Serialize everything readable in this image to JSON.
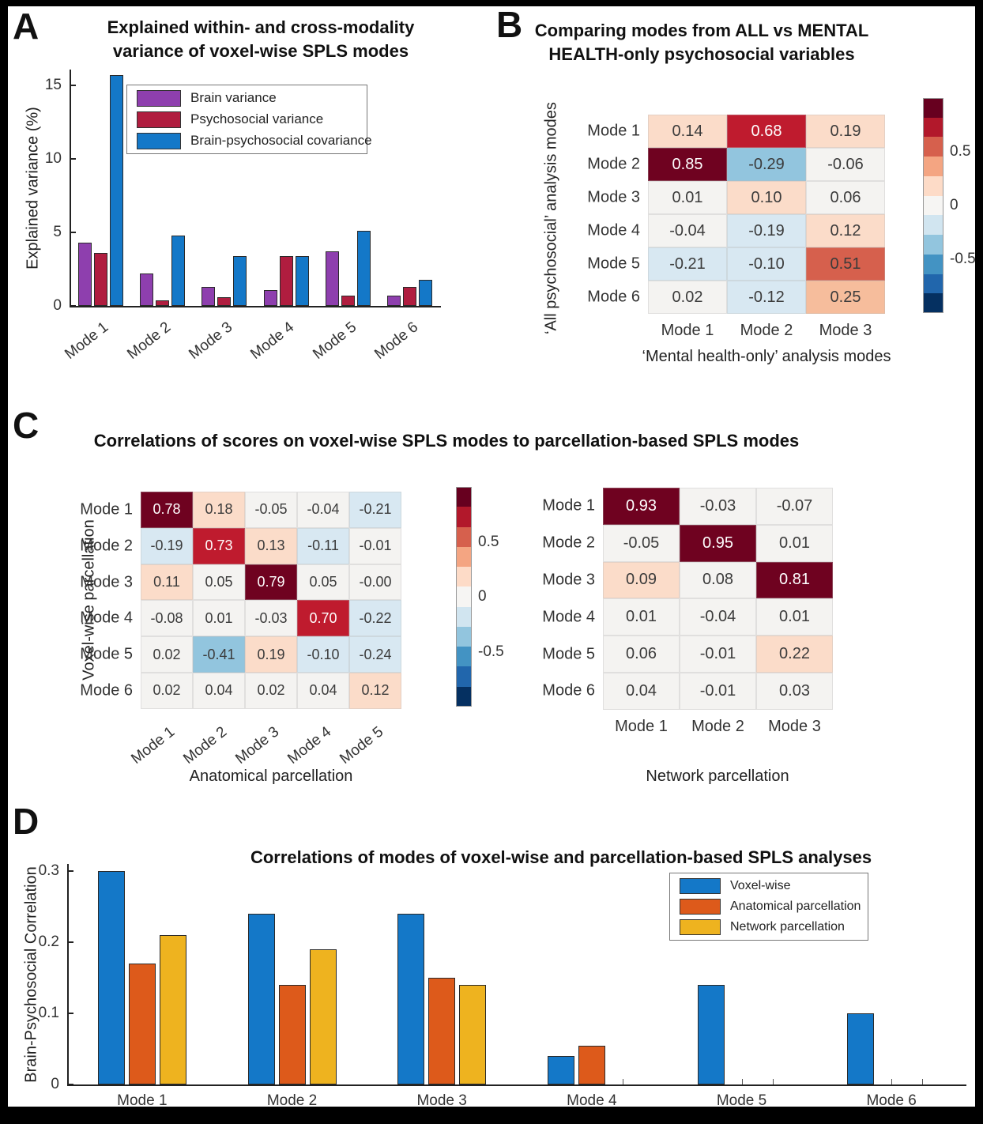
{
  "figure": {
    "colorbar_ticks": [
      "0.5",
      "0",
      "-0.5"
    ],
    "colorbar_segments": [
      "#67001f",
      "#b2182b",
      "#d6604d",
      "#f4a582",
      "#fddbc7",
      "#f6f5f3",
      "#d1e5f0",
      "#92c5de",
      "#4393c3",
      "#2166ac",
      "#053061"
    ],
    "heatmap_colormap": {
      "thresholds": [
        0.75,
        0.62,
        0.45,
        0.23,
        0.085,
        -0.085,
        -0.26,
        -0.5
      ],
      "colors": [
        "#6f0220",
        "#bf1b2e",
        "#d6604d",
        "#f6bd9c",
        "#fbdcc9",
        "#f4f3f1",
        "#d8e8f2",
        "#92c5de",
        "#4393c3"
      ],
      "white_text_min": 0.62
    }
  },
  "chart_data": [
    {
      "id": "A",
      "panel_label": "A",
      "type": "bar",
      "title_lines": [
        "Explained within- and cross-modality",
        "variance of voxel-wise SPLS modes"
      ],
      "ylabel": "Explained variance (%)",
      "categories": [
        "Mode 1",
        "Mode 2",
        "Mode 3",
        "Mode 4",
        "Mode 5",
        "Mode 6"
      ],
      "yticks": [
        0,
        5,
        10,
        15
      ],
      "ylim": [
        0,
        16.1
      ],
      "grid": false,
      "legend_position": "upper center",
      "series": [
        {
          "name": "Brain variance",
          "color": "#8e3fae",
          "values": [
            4.3,
            2.2,
            1.3,
            1.1,
            3.7,
            0.7
          ]
        },
        {
          "name": "Psychosocial variance",
          "color": "#b01d3f",
          "values": [
            3.6,
            0.4,
            0.6,
            3.4,
            0.7,
            1.3
          ]
        },
        {
          "name": "Brain-psychosocial covariance",
          "color": "#1478c8",
          "values": [
            15.7,
            4.8,
            3.4,
            3.4,
            5.1,
            1.8
          ]
        }
      ]
    },
    {
      "id": "B",
      "panel_label": "B",
      "type": "heatmap",
      "title_lines": [
        "Comparing modes from ALL vs MENTAL",
        "HEALTH-only psychosocial variables"
      ],
      "ylabel": "‘All psychosocial’ analysis modes",
      "xlabel": "‘Mental health-only’ analysis modes",
      "row_labels": [
        "Mode 1",
        "Mode 2",
        "Mode 3",
        "Mode 4",
        "Mode 5",
        "Mode 6"
      ],
      "col_labels": [
        "Mode 1",
        "Mode 2",
        "Mode 3"
      ],
      "values": [
        [
          "0.14",
          "0.68",
          "0.19"
        ],
        [
          "0.85",
          "-0.29",
          "-0.06"
        ],
        [
          "0.01",
          "0.10",
          "0.06"
        ],
        [
          "-0.04",
          "-0.19",
          "0.12"
        ],
        [
          "-0.21",
          "-0.10",
          "0.51"
        ],
        [
          "0.02",
          "-0.12",
          "0.25"
        ]
      ]
    },
    {
      "id": "C_left",
      "panel_label": "C",
      "type": "heatmap",
      "parent_title": "Correlations of scores on voxel-wise SPLS modes to parcellation-based SPLS modes",
      "ylabel": "Voxel-wise parcellation",
      "xlabel": "Anatomical parcellation",
      "row_labels": [
        "Mode 1",
        "Mode 2",
        "Mode 3",
        "Mode 4",
        "Mode 5",
        "Mode 6"
      ],
      "col_labels": [
        "Mode 1",
        "Mode 2",
        "Mode 3",
        "Mode 4",
        "Mode 5"
      ],
      "values": [
        [
          "0.78",
          "0.18",
          "-0.05",
          "-0.04",
          "-0.21"
        ],
        [
          "-0.19",
          "0.73",
          "0.13",
          "-0.11",
          "-0.01"
        ],
        [
          "0.11",
          "0.05",
          "0.79",
          "0.05",
          "-0.00"
        ],
        [
          "-0.08",
          "0.01",
          "-0.03",
          "0.70",
          "-0.22"
        ],
        [
          "0.02",
          "-0.41",
          "0.19",
          "-0.10",
          "-0.24"
        ],
        [
          "0.02",
          "0.04",
          "0.02",
          "0.04",
          "0.12"
        ]
      ]
    },
    {
      "id": "C_right",
      "type": "heatmap",
      "xlabel": "Network parcellation",
      "row_labels": [
        "Mode 1",
        "Mode 2",
        "Mode 3",
        "Mode 4",
        "Mode 5",
        "Mode 6"
      ],
      "col_labels": [
        "Mode 1",
        "Mode 2",
        "Mode 3"
      ],
      "values": [
        [
          "0.93",
          "-0.03",
          "-0.07"
        ],
        [
          "-0.05",
          "0.95",
          "0.01"
        ],
        [
          "0.09",
          "0.08",
          "0.81"
        ],
        [
          "0.01",
          "-0.04",
          "0.01"
        ],
        [
          "0.06",
          "-0.01",
          "0.22"
        ],
        [
          "0.04",
          "-0.01",
          "0.03"
        ]
      ]
    },
    {
      "id": "D",
      "panel_label": "D",
      "type": "bar",
      "title": "Correlations of modes of voxel-wise and parcellation-based SPLS analyses",
      "ylabel": "Brain-Psychosocial Correlation",
      "categories": [
        "Mode 1",
        "Mode 2",
        "Mode 3",
        "Mode 4",
        "Mode 5",
        "Mode 6"
      ],
      "yticks": [
        0,
        0.1,
        0.2,
        0.3
      ],
      "ylim": [
        0,
        0.31
      ],
      "grid": false,
      "legend_position": "upper right",
      "series": [
        {
          "name": "Voxel-wise",
          "color": "#1478c8",
          "values": [
            0.3,
            0.24,
            0.24,
            0.04,
            0.14,
            0.1
          ]
        },
        {
          "name": "Anatomical parcellation",
          "color": "#dd5a1b",
          "values": [
            0.17,
            0.14,
            0.15,
            0.055,
            0,
            0
          ]
        },
        {
          "name": "Network parcellation",
          "color": "#eeb31f",
          "values": [
            0.21,
            0.19,
            0.14,
            0,
            0,
            0
          ]
        }
      ]
    }
  ]
}
